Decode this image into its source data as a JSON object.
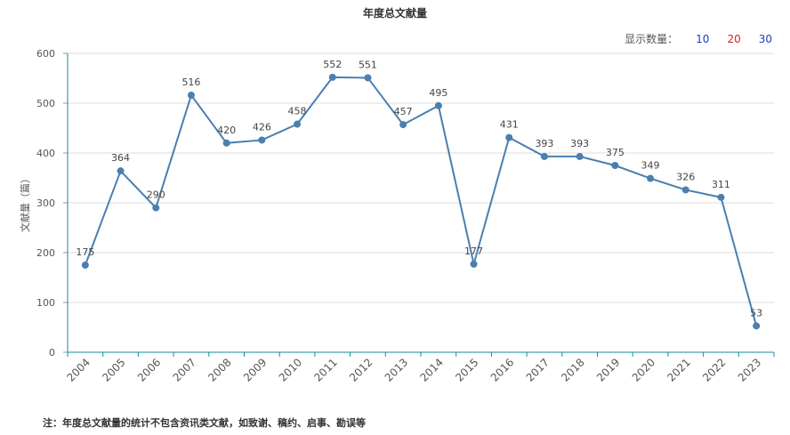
{
  "title": "年度总文献量",
  "count_selector": {
    "label": "显示数量：",
    "options": [
      {
        "text": "10",
        "color": "#1a3fb8"
      },
      {
        "text": "20",
        "color": "#d62020"
      },
      {
        "text": "30",
        "color": "#1a3fb8"
      }
    ]
  },
  "footnote": "注：年度总文献量的统计不包含资讯类文献，如致谢、稿约、启事、勘误等",
  "colors": {
    "line": "#4a7fb0",
    "point": "#4a7fb0",
    "axis": "#1a8aa0",
    "grid": "#dddddd"
  },
  "chart_data": {
    "type": "line",
    "ylabel": "文献量（篇）",
    "xlabel": "",
    "ylim": [
      0,
      600
    ],
    "yticks": [
      0,
      100,
      200,
      300,
      400,
      500,
      600
    ],
    "categories": [
      "2004",
      "2005",
      "2006",
      "2007",
      "2008",
      "2009",
      "2010",
      "2011",
      "2012",
      "2013",
      "2014",
      "2015",
      "2016",
      "2017",
      "2018",
      "2019",
      "2020",
      "2021",
      "2022",
      "2023"
    ],
    "values": [
      175,
      364,
      290,
      516,
      420,
      426,
      458,
      552,
      551,
      457,
      495,
      177,
      431,
      393,
      393,
      375,
      349,
      326,
      311,
      53
    ],
    "grid": true
  }
}
